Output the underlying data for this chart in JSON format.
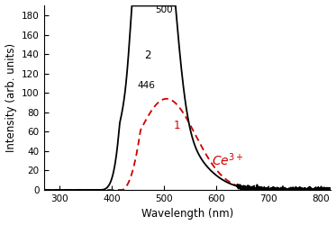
{
  "xlim": [
    270,
    820
  ],
  "ylim": [
    0,
    190
  ],
  "xlabel": "Wavelength (nm)",
  "ylabel": "Intensity (arb. units)",
  "xticks": [
    300,
    400,
    500,
    600,
    700,
    800
  ],
  "yticks": [
    0,
    20,
    40,
    60,
    80,
    100,
    120,
    140,
    160,
    180
  ],
  "curve1_color": "#cc0000",
  "curve2_color": "#000000",
  "ce3_label": "Ce$^{3+}$",
  "label1": "1",
  "label2": "2",
  "peak_label_500": "500",
  "peak_label_446": "446",
  "background_color": "#ffffff"
}
